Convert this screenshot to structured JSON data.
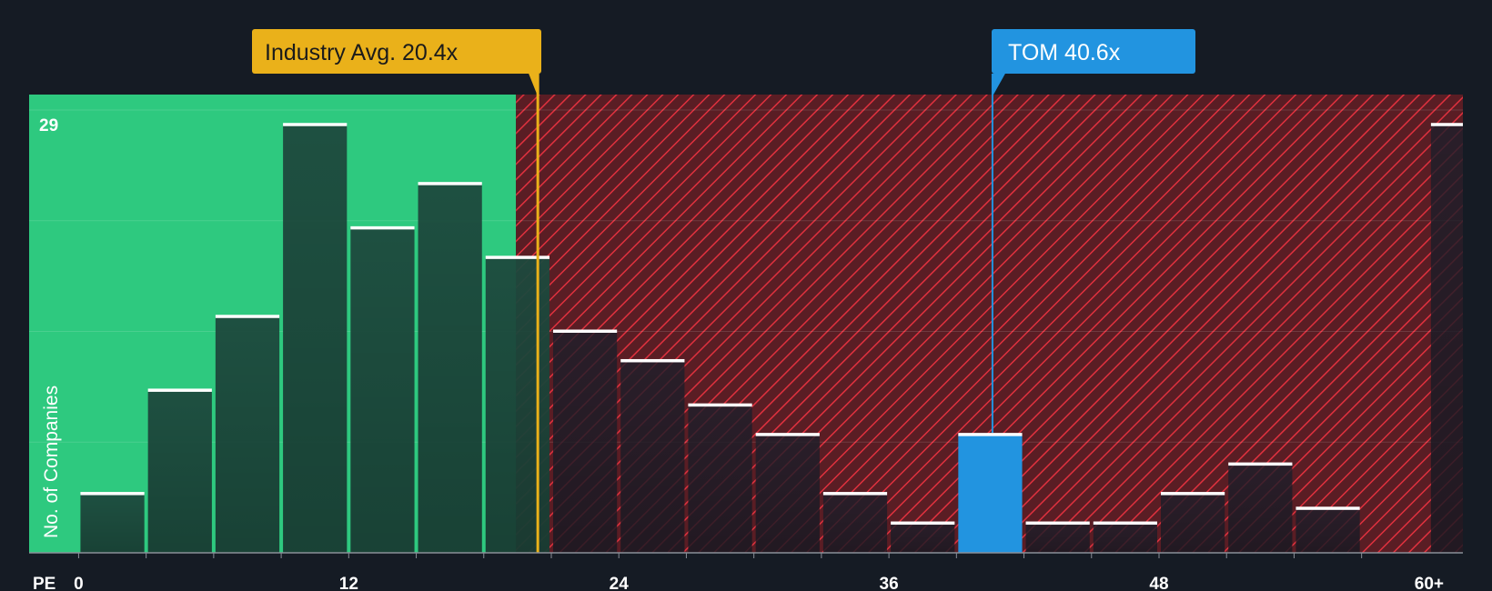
{
  "chart_data": {
    "type": "bar",
    "title": "",
    "xlabel": "PE",
    "ylabel": "No. of Companies",
    "x_tick_labels": [
      "0",
      "12",
      "24",
      "36",
      "48",
      "60+"
    ],
    "x_ticks": [
      0,
      12,
      24,
      36,
      48,
      60
    ],
    "xlim": [
      -2.2,
      61.5
    ],
    "ylim": [
      0,
      30
    ],
    "y_max_label": "29",
    "bin_width": 3,
    "bins": [
      {
        "start": 0,
        "value": 4
      },
      {
        "start": 3,
        "value": 11
      },
      {
        "start": 6,
        "value": 16
      },
      {
        "start": 9,
        "value": 29
      },
      {
        "start": 12,
        "value": 22
      },
      {
        "start": 15,
        "value": 25
      },
      {
        "start": 18,
        "value": 20
      },
      {
        "start": 21,
        "value": 15
      },
      {
        "start": 24,
        "value": 13
      },
      {
        "start": 27,
        "value": 10
      },
      {
        "start": 30,
        "value": 8
      },
      {
        "start": 33,
        "value": 4
      },
      {
        "start": 36,
        "value": 2
      },
      {
        "start": 39,
        "value": 8,
        "highlight": true
      },
      {
        "start": 42,
        "value": 2
      },
      {
        "start": 45,
        "value": 2
      },
      {
        "start": 48,
        "value": 4
      },
      {
        "start": 51,
        "value": 6
      },
      {
        "start": 54,
        "value": 3
      },
      {
        "start": 60,
        "value": 29
      }
    ],
    "industry_avg": {
      "value": 20.4,
      "label": "Industry Avg. 20.4x"
    },
    "company": {
      "value": 40.6,
      "label": "TOM 40.6x"
    },
    "colors": {
      "background": "#151b24",
      "good_zone": "#2ec97f",
      "bad_zone": "#5a1d24",
      "hatch": "#e0313e",
      "bar_good": "#1e4a3e",
      "bar_bad": "#1b1f2a",
      "highlight": "#2294e0",
      "industry": "#eab11a",
      "bar_top": "#ffffff"
    }
  }
}
